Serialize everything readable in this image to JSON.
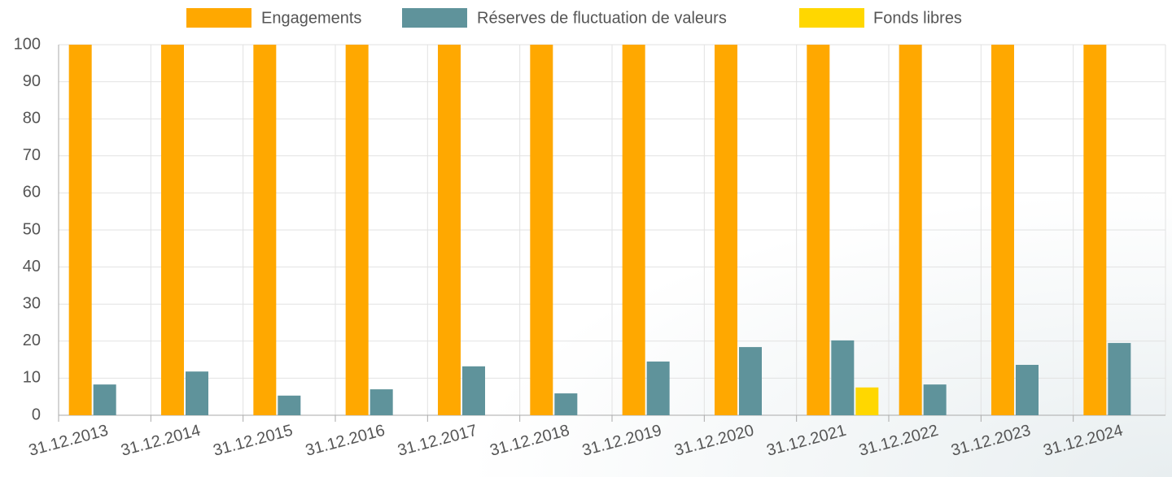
{
  "chart_data": {
    "type": "bar",
    "categories": [
      "31.12.2013",
      "31.12.2014",
      "31.12.2015",
      "31.12.2016",
      "31.12.2017",
      "31.12.2018",
      "31.12.2019",
      "31.12.2020",
      "31.12.2021",
      "31.12.2022",
      "31.12.2023",
      "31.12.2024"
    ],
    "series": [
      {
        "name": "Engagements",
        "color": "#ffa800",
        "values": [
          100,
          100,
          100,
          100,
          100,
          100,
          100,
          100,
          100,
          100,
          100,
          100
        ]
      },
      {
        "name": "Réserves de fluctuation de valeurs",
        "color": "#5f939b",
        "values": [
          8.3,
          11.8,
          5.3,
          7.0,
          13.2,
          5.9,
          14.5,
          18.4,
          20.2,
          8.3,
          13.6,
          19.5
        ]
      },
      {
        "name": "Fonds libres",
        "color": "#ffd700",
        "values": [
          null,
          null,
          null,
          null,
          null,
          null,
          null,
          null,
          7.5,
          null,
          null,
          null
        ]
      }
    ],
    "ylim": [
      0,
      100
    ],
    "yticks": [
      0,
      10,
      20,
      30,
      40,
      50,
      60,
      70,
      80,
      90,
      100
    ],
    "grid": true,
    "legend": "top"
  }
}
